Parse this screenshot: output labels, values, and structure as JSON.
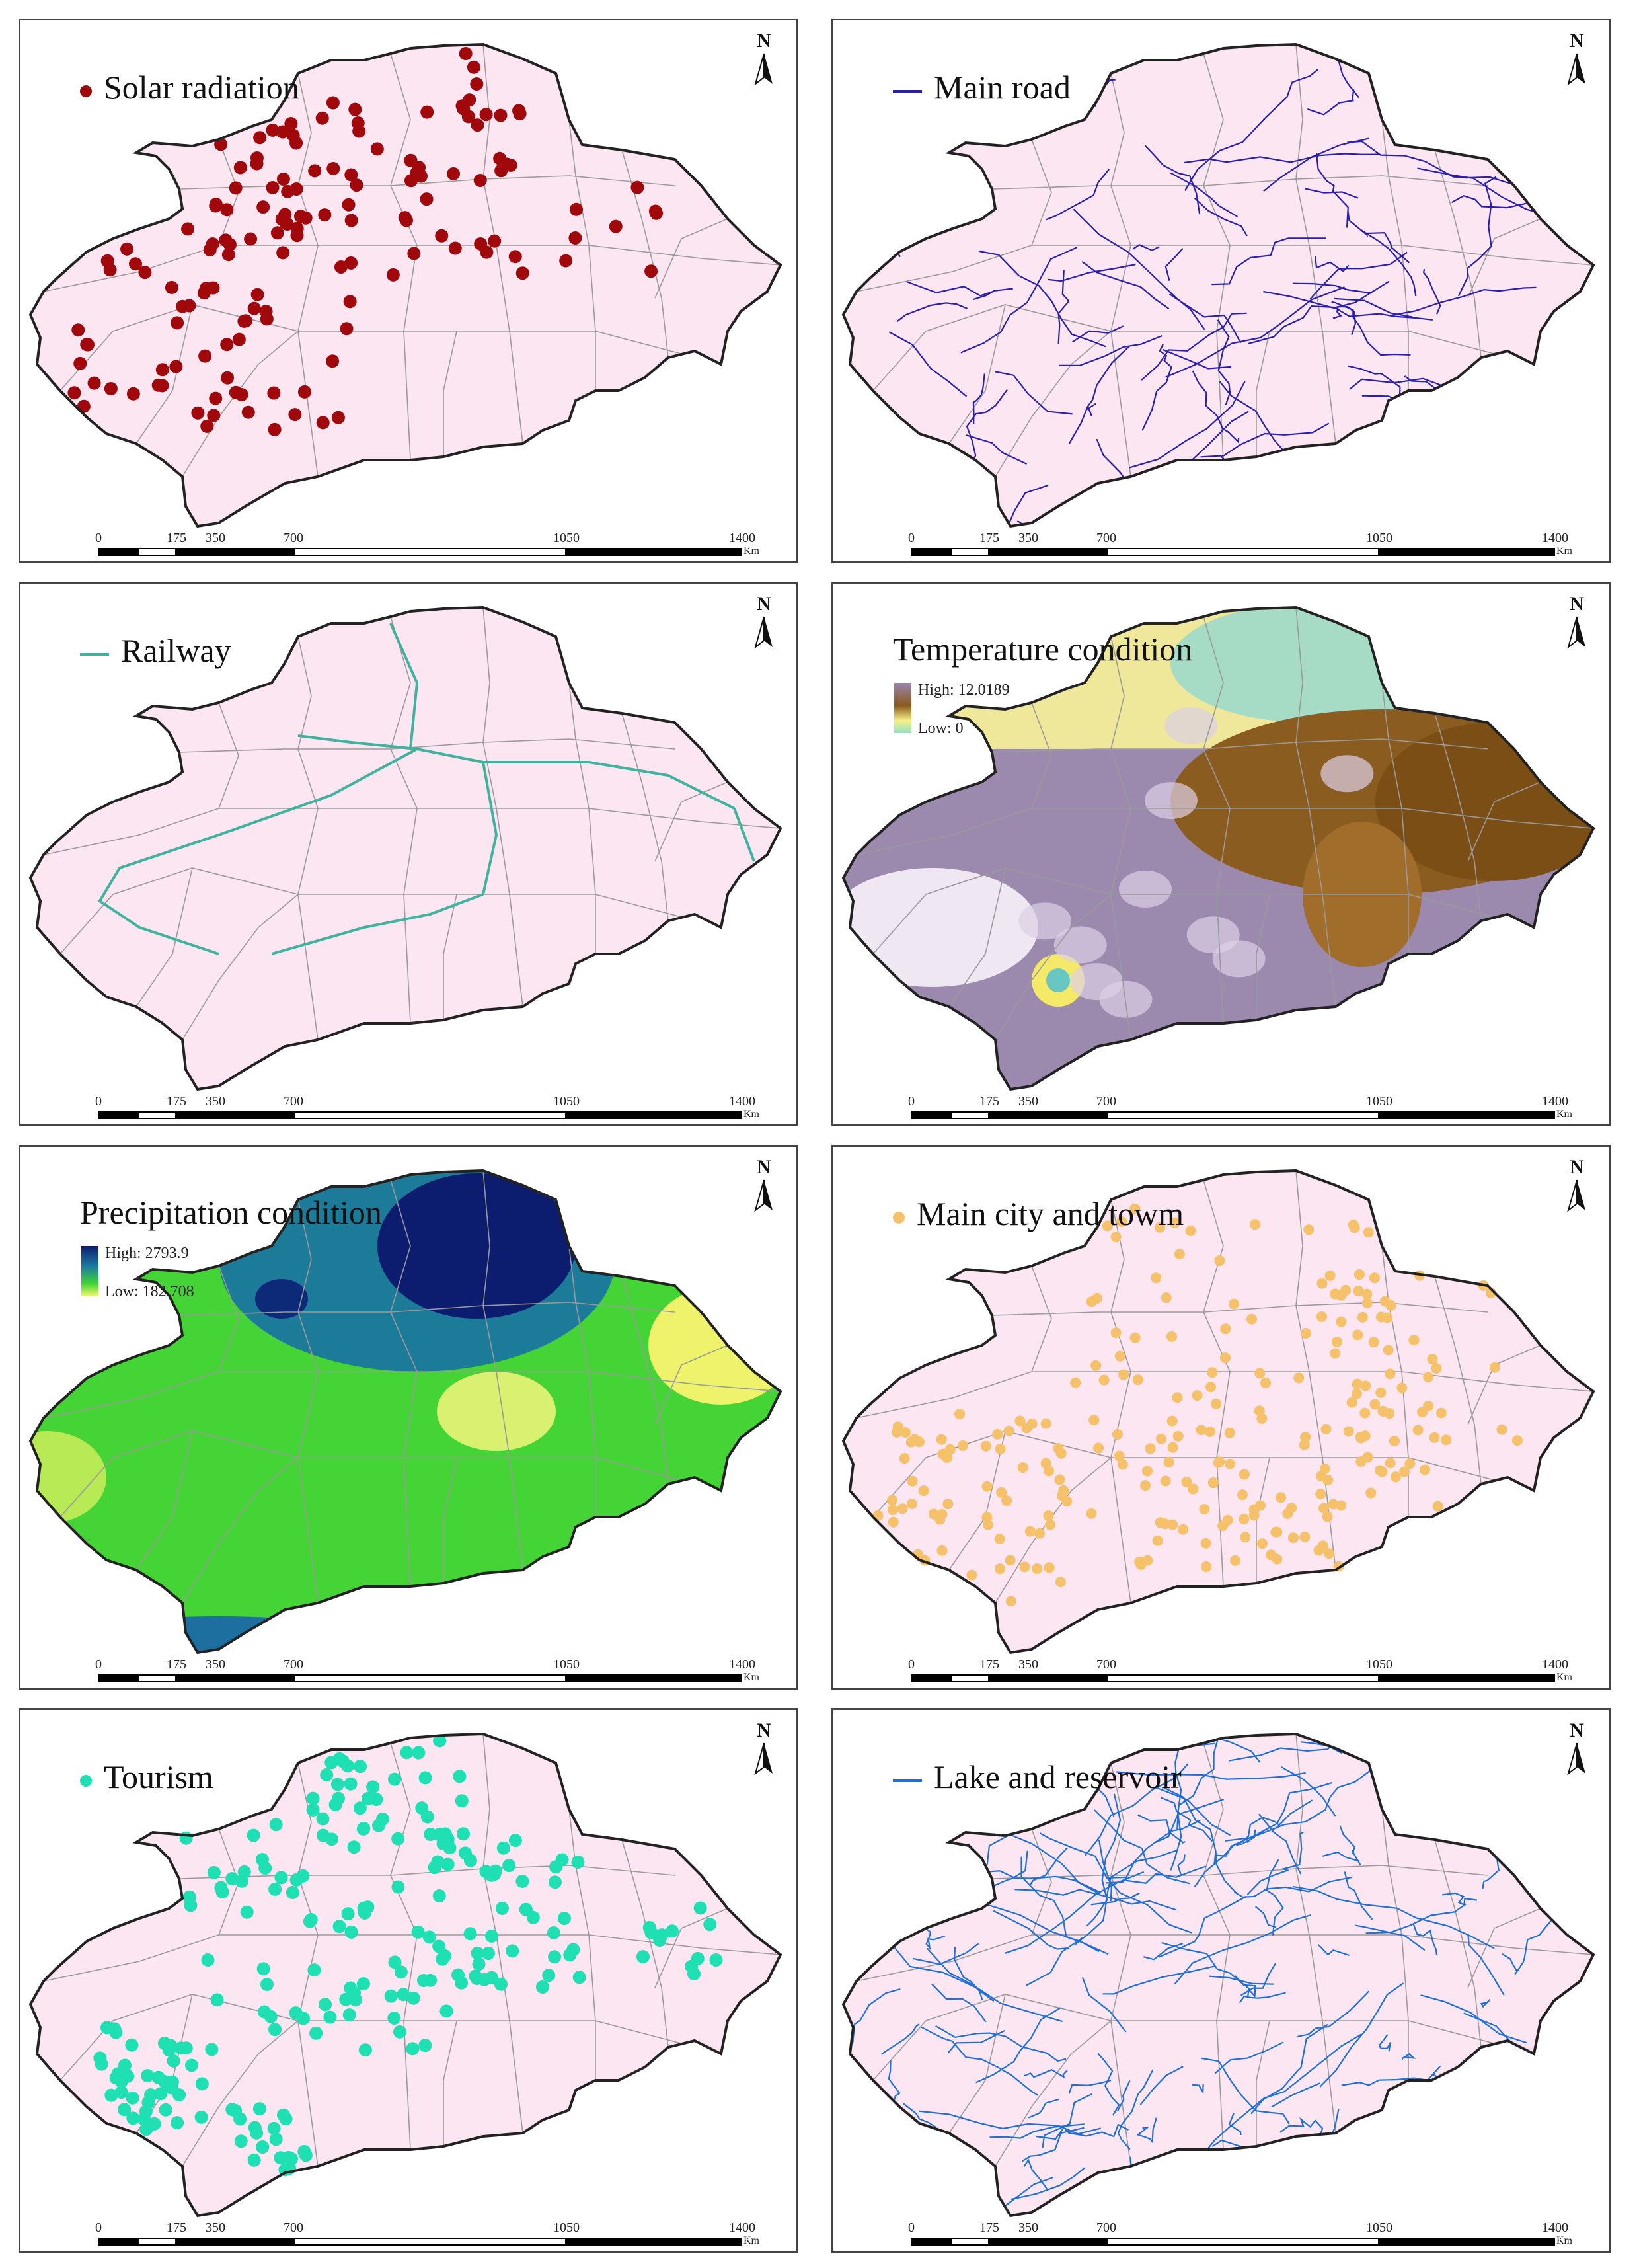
{
  "panels": [
    {
      "id": "solar",
      "layer": "Solar radiation",
      "type": "points",
      "color": "#a0080c",
      "pointColor": "#a0080c"
    },
    {
      "id": "road",
      "layer": "Main road",
      "type": "lines",
      "color": "#2a1fb0"
    },
    {
      "id": "railway",
      "layer": "Railway",
      "type": "lines",
      "color": "#3fb39e"
    },
    {
      "id": "temperature",
      "layer": "Temperature condition",
      "type": "raster",
      "high": "High: 12.0189",
      "low": "Low: 0"
    },
    {
      "id": "precipitation",
      "layer": "Precipitation condition",
      "type": "raster",
      "high": "High: 2793.9",
      "low": "Low: 182.708"
    },
    {
      "id": "city",
      "layer": "Main city and towm",
      "type": "points",
      "color": "#f5c26b"
    },
    {
      "id": "tourism",
      "layer": "Tourism",
      "type": "points",
      "color": "#1fe0b3"
    },
    {
      "id": "lake",
      "layer": "Lake and reservoir",
      "type": "lines",
      "color": "#1f6fd6"
    }
  ],
  "north_label": "N",
  "scale": {
    "ticks": [
      "0",
      "175",
      "350",
      "700",
      "1050",
      "1400"
    ],
    "unit": "Km"
  },
  "colors": {
    "land": "#fce6f2",
    "boundary": "#222222",
    "internal": "#9a9a9a"
  }
}
